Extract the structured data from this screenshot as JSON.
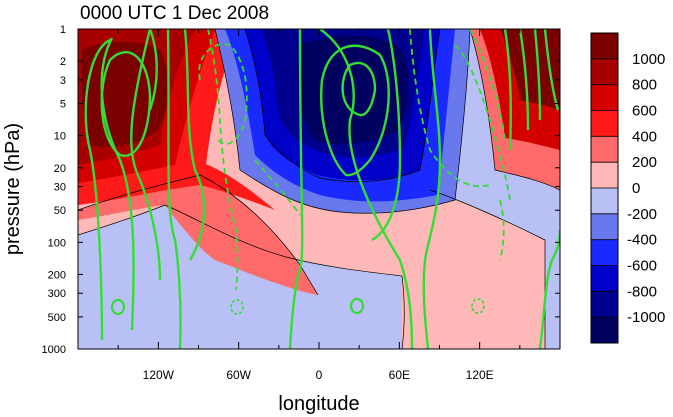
{
  "chart_data": {
    "type": "heatmap",
    "title": "0000 UTC 1 Dec 2008",
    "xlabel": "longitude",
    "ylabel": "pressure (hPa)",
    "x_ticks": [
      "120W",
      "60W",
      "0",
      "60E",
      "120E"
    ],
    "x_tick_values": [
      -120,
      -60,
      0,
      60,
      120
    ],
    "xlim": [
      -180,
      180
    ],
    "y_scale": "log",
    "y_ticks": [
      "1",
      "2",
      "3",
      "5",
      "10",
      "20",
      "30",
      "50",
      "100",
      "200",
      "300",
      "500",
      "1000"
    ],
    "y_tick_values": [
      1,
      2,
      3,
      5,
      10,
      20,
      30,
      50,
      100,
      200,
      300,
      500,
      1000
    ],
    "ylim": [
      1000,
      1
    ],
    "colorbar": {
      "labels": [
        "1000",
        "800",
        "600",
        "400",
        "200",
        "0",
        "-200",
        "-400",
        "-600",
        "-800",
        "-1000"
      ],
      "colors": [
        "#7a0000",
        "#a80000",
        "#d40000",
        "#ff1a1a",
        "#ff6a6a",
        "#ffb8b8",
        "#b8c0f6",
        "#6a78ee",
        "#1a2aff",
        "#0000c8",
        "#00008e",
        "#000060"
      ]
    },
    "contour_color": "#33dd33"
  }
}
